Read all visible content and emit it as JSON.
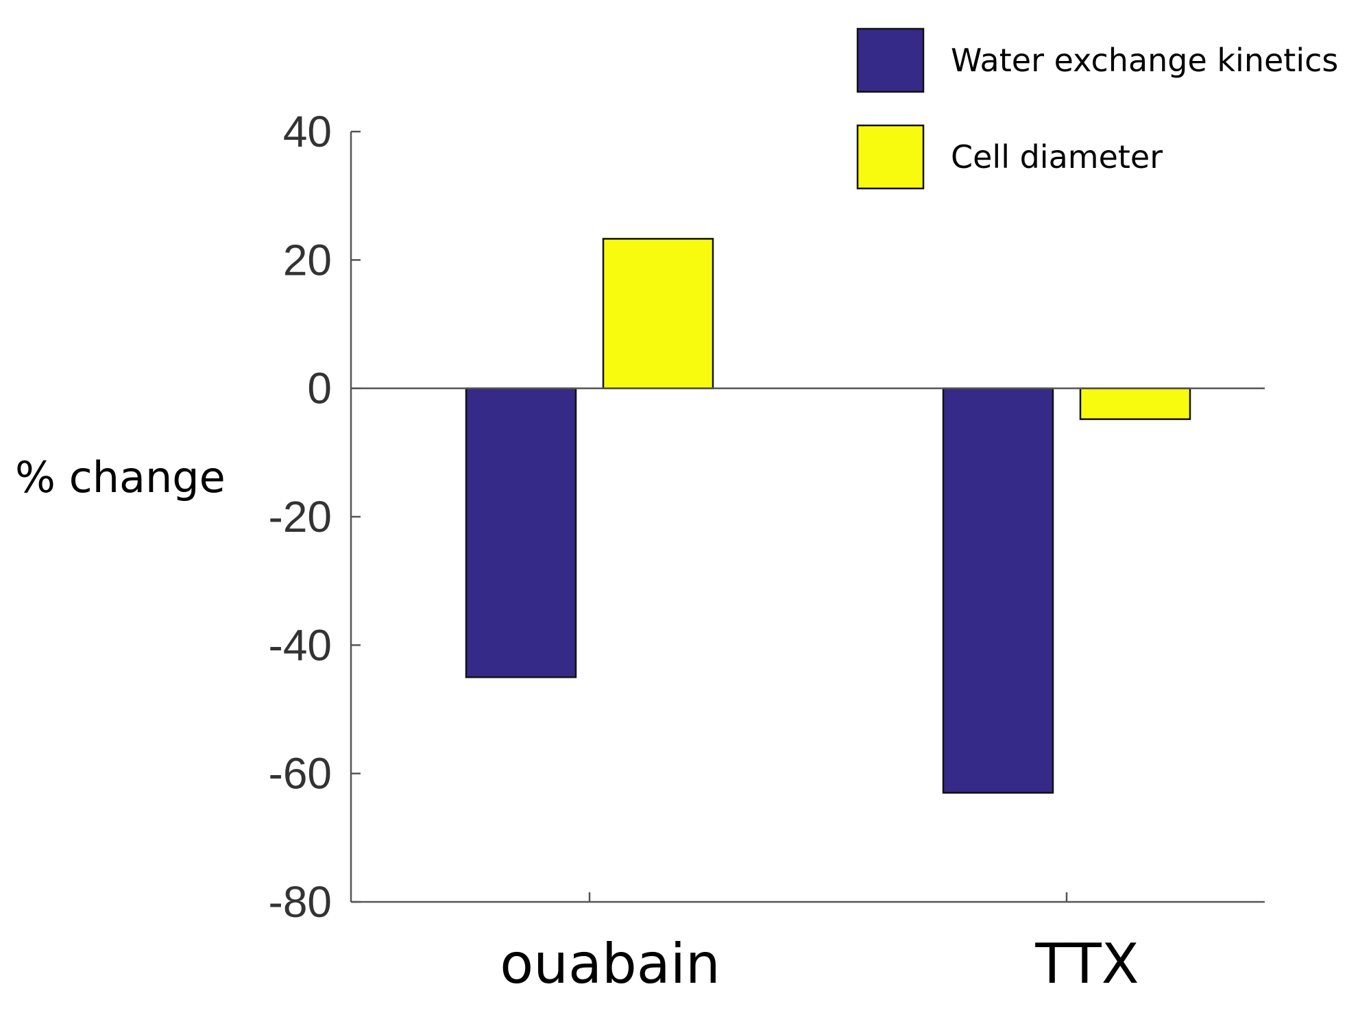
{
  "chart_data": {
    "type": "bar",
    "ylabel": "% change",
    "xlabel": "",
    "ylim": [
      -80,
      40
    ],
    "yticks": [
      40,
      20,
      0,
      -20,
      -40,
      -60,
      -80
    ],
    "categories": [
      "ouabain",
      "TTX"
    ],
    "series": [
      {
        "name": "Water exchange kinetics",
        "color": "#352a87",
        "values": [
          -45,
          -63
        ]
      },
      {
        "name": "Cell diameter",
        "color": "#f9fb0e",
        "values": [
          23.3,
          -4.8
        ]
      }
    ],
    "legend_position": "top-right",
    "grid": false
  }
}
